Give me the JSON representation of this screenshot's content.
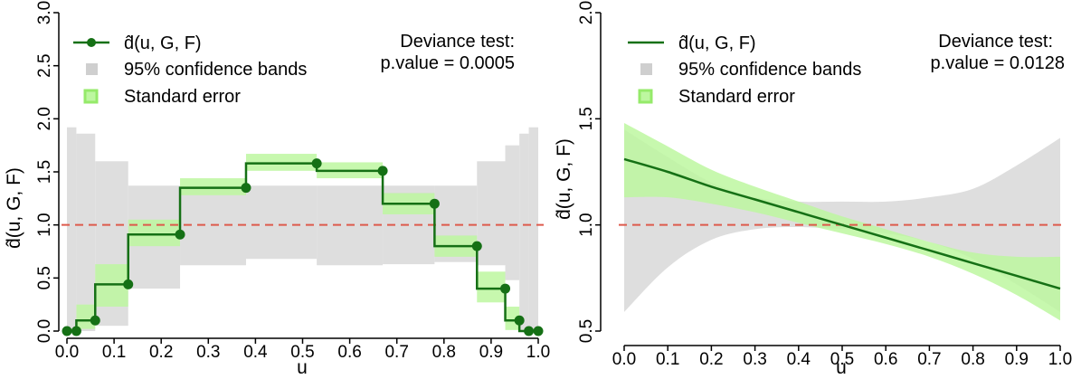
{
  "chart_data": [
    {
      "type": "line",
      "subtype": "step",
      "title": "",
      "xlabel": "u",
      "ylabel": "d̂(u, G, F)",
      "xlim": [
        0,
        1
      ],
      "ylim": [
        0,
        3
      ],
      "xticks": [
        "0.0",
        "0.1",
        "0.2",
        "0.3",
        "0.4",
        "0.5",
        "0.6",
        "0.7",
        "0.8",
        "0.9",
        "1.0"
      ],
      "yticks": [
        "0.0",
        "0.5",
        "1.0",
        "1.5",
        "2.0",
        "2.5",
        "3.0"
      ],
      "reference_line": 1.0,
      "grid": false,
      "legend_position": "top-left",
      "legend": [
        "d̂(u, G, F)",
        "95% confidence bands",
        "Standard error"
      ],
      "annotation": [
        "Deviance test:",
        "p.value = 0.0005"
      ],
      "series": [
        {
          "name": "d̂(u, G, F)",
          "x": [
            0,
            0.02,
            0.06,
            0.13,
            0.24,
            0.38,
            0.53,
            0.67,
            0.78,
            0.87,
            0.93,
            0.96,
            0.98,
            1.0
          ],
          "y": [
            0,
            0,
            0.1,
            0.44,
            0.91,
            1.35,
            1.58,
            1.51,
            1.2,
            0.8,
            0.4,
            0.1,
            0,
            0
          ],
          "step_values": [
            0,
            0.1,
            0.44,
            0.91,
            1.35,
            1.58,
            1.51,
            1.2,
            0.8,
            0.4,
            0.1,
            0,
            0
          ]
        },
        {
          "name": "95% confidence bands",
          "lower": [
            0,
            0,
            0.05,
            0.4,
            0.62,
            0.68,
            0.62,
            0.63,
            0.65,
            0.62,
            0.48,
            0,
            0
          ],
          "upper": [
            1.92,
            1.86,
            1.6,
            1.37,
            1.37,
            1.37,
            1.37,
            1.37,
            1.37,
            1.6,
            1.75,
            1.86,
            1.92
          ]
        },
        {
          "name": "Standard error",
          "lower": [
            0,
            0.02,
            0.23,
            0.8,
            1.28,
            1.51,
            1.44,
            1.1,
            0.7,
            0.27,
            0.01,
            0,
            0
          ],
          "upper": [
            0.02,
            0.25,
            0.63,
            1.05,
            1.44,
            1.67,
            1.59,
            1.3,
            0.9,
            0.56,
            0.23,
            0.01,
            0.01
          ]
        }
      ]
    },
    {
      "type": "line",
      "title": "",
      "xlabel": "u",
      "ylabel": "d̂(u, G, F)",
      "xlim": [
        0,
        1
      ],
      "ylim": [
        0.5,
        2.0
      ],
      "xticks": [
        "0.0",
        "0.1",
        "0.2",
        "0.3",
        "0.4",
        "0.5",
        "0.6",
        "0.7",
        "0.8",
        "0.9",
        "1.0"
      ],
      "yticks": [
        "0.5",
        "1.0",
        "1.5",
        "2.0"
      ],
      "reference_line": 1.0,
      "grid": false,
      "legend_position": "top-left",
      "legend": [
        "d̂(u, G, F)",
        "95% confidence bands",
        "Standard error"
      ],
      "annotation": [
        "Deviance test:",
        "p.value = 0.0128"
      ],
      "series": [
        {
          "name": "d̂(u, G, F)",
          "x": [
            0,
            0.1,
            0.2,
            0.3,
            0.4,
            0.5,
            0.6,
            0.7,
            0.8,
            0.9,
            1.0
          ],
          "y": [
            1.31,
            1.25,
            1.18,
            1.12,
            1.06,
            1.0,
            0.94,
            0.88,
            0.82,
            0.76,
            0.7
          ]
        },
        {
          "name": "95% confidence bands",
          "x": [
            0,
            0.1,
            0.2,
            0.3,
            0.4,
            0.5,
            0.6,
            0.7,
            0.8,
            0.9,
            1.0
          ],
          "lower": [
            0.59,
            0.8,
            0.93,
            0.98,
            0.99,
            0.98,
            0.96,
            0.92,
            0.84,
            0.72,
            0.59
          ],
          "upper": [
            1.45,
            1.32,
            1.2,
            1.13,
            1.11,
            1.11,
            1.11,
            1.13,
            1.17,
            1.28,
            1.41
          ]
        },
        {
          "name": "Standard error",
          "x": [
            0,
            0.1,
            0.2,
            0.3,
            0.4,
            0.5,
            0.6,
            0.7,
            0.8,
            0.9,
            1.0
          ],
          "lower": [
            1.13,
            1.13,
            1.1,
            1.06,
            1.01,
            0.96,
            0.91,
            0.85,
            0.77,
            0.67,
            0.55
          ],
          "upper": [
            1.48,
            1.37,
            1.26,
            1.18,
            1.11,
            1.04,
            0.98,
            0.92,
            0.87,
            0.85,
            0.85
          ]
        }
      ]
    }
  ],
  "colors": {
    "line": "#157015",
    "se_fill": "#bdf7a0",
    "se_line": "#95ea6a",
    "ci_fill": "#dedede",
    "ci_legend": "#cfcfcf",
    "reference": "#dd5a4c"
  }
}
